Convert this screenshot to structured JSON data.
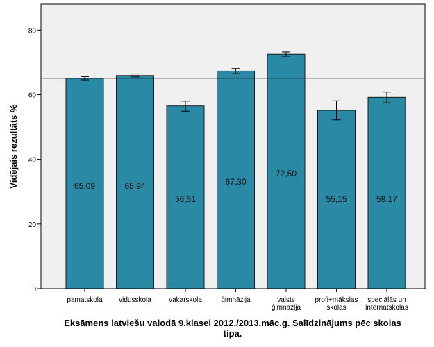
{
  "chart_data": {
    "type": "bar",
    "categories": [
      [
        "pamatskola"
      ],
      [
        "vidusskola"
      ],
      [
        "vakarskola"
      ],
      [
        "ģimnāzija"
      ],
      [
        "valsts",
        "ģimnāzija"
      ],
      [
        "profi+mākslas",
        "skolas"
      ],
      [
        "speciālās un",
        "internātskolas"
      ]
    ],
    "values": [
      65.09,
      65.94,
      56.51,
      67.3,
      72.5,
      55.15,
      59.17
    ],
    "value_labels": [
      "65,09",
      "65,94",
      "56,51",
      "67,30",
      "72,50",
      "55,15",
      "59,17"
    ],
    "error_low": [
      64.6,
      65.5,
      54.9,
      66.5,
      71.9,
      52.2,
      57.5
    ],
    "error_high": [
      65.6,
      66.4,
      58.0,
      68.1,
      73.2,
      58.1,
      60.8
    ],
    "reference_line": 65.1,
    "ylabel": "Vidējais rezultāts %",
    "xlabel_lines": [
      "Eksāmens latviešu valodā 9.klasei 2012./2013.māc.g. Salīdzinājums pēc skolas",
      "tipa."
    ],
    "yticks": [
      "0",
      "20",
      "40",
      "60",
      "80"
    ],
    "ytick_values": [
      0,
      20,
      40,
      60,
      80
    ],
    "ylim": [
      0,
      88
    ],
    "grid": false,
    "colors": {
      "bar": "#2a8aa6",
      "bar_edge": "#1a1a1a",
      "plot_bg": "#f0f0f0",
      "reference_line": "#000000"
    }
  }
}
